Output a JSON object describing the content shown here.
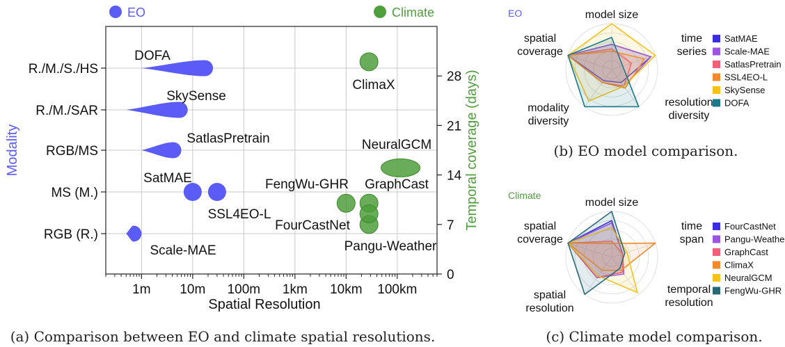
{
  "chart_data": [
    {
      "type": "scatter",
      "caption": "(a) Comparison between EO and climate spatial resolutions.",
      "xlabel": "Spatial Resolution",
      "ylabel_left": "Modality",
      "ylabel_right": "Temporal coverage (days)",
      "x_ticks": [
        "1m",
        "10m",
        "100m",
        "1km",
        "10km",
        "100km"
      ],
      "x_scale": "log",
      "xlim_m": [
        0.2,
        600000
      ],
      "y_categories": [
        "RGB (R.)",
        "MS (M.)",
        "RGB/MS",
        "R./M./SAR",
        "R./M./S./HS"
      ],
      "y_right_ticks": [
        0,
        7,
        14,
        21,
        28
      ],
      "y_right_lim": [
        0,
        35
      ],
      "grid": true,
      "legend": [
        {
          "name": "EO",
          "color": "#5b5bf5"
        },
        {
          "name": "Climate",
          "color": "#4f9e3c"
        }
      ],
      "eo_models": [
        {
          "name": "DOFA",
          "modality": "R./M./S./HS",
          "res_min_m": 1,
          "res_max_m": 25,
          "shape": "teardrop"
        },
        {
          "name": "SkySense",
          "modality": "R./M./SAR",
          "res_min_m": 0.5,
          "res_max_m": 8,
          "shape": "teardrop"
        },
        {
          "name": "SatlasPretrain",
          "modality": "RGB/MS",
          "res_min_m": 1,
          "res_max_m": 6,
          "shape": "teardrop"
        },
        {
          "name": "SatMAE",
          "modality": "MS (M.)",
          "res_m": 10,
          "shape": "circle"
        },
        {
          "name": "SSL4EO-L",
          "modality": "MS (M.)",
          "res_m": 30,
          "shape": "circle"
        },
        {
          "name": "Scale-MAE",
          "modality": "RGB (R.)",
          "res_min_m": 0.5,
          "res_max_m": 1,
          "shape": "teardrop"
        }
      ],
      "climate_models": [
        {
          "name": "ClimaX",
          "res_m": 28000,
          "days": 30
        },
        {
          "name": "NeuralGCM",
          "res_m": 140000,
          "days": 15
        },
        {
          "name": "FengWu-GHR",
          "res_m": 10000,
          "days": 10
        },
        {
          "name": "GraphCast",
          "res_m": 28000,
          "days": 10
        },
        {
          "name": "FourCastNet",
          "res_m": 28000,
          "days": 7
        },
        {
          "name": "Pangu-Weather",
          "res_m": 28000,
          "days": 8.5
        }
      ]
    },
    {
      "type": "radar",
      "caption": "(b) EO model comparison.",
      "corner_label": "EO",
      "axes": [
        "model size",
        "time series",
        "resolution diversity",
        "modality diversity",
        "spatial coverage"
      ],
      "series": [
        {
          "name": "SatMAE",
          "color": "#3b2ee0",
          "values": [
            0.55,
            0.9,
            0.35,
            0.3,
            1.0
          ]
        },
        {
          "name": "Scale-MAE",
          "color": "#9b55e0",
          "values": [
            0.55,
            0.9,
            0.45,
            0.35,
            1.0
          ]
        },
        {
          "name": "SatlasPretrain",
          "color": "#f0607a",
          "values": [
            0.45,
            0.45,
            0.45,
            0.35,
            1.0
          ]
        },
        {
          "name": "SSL4EO-L",
          "color": "#f08a2c",
          "values": [
            0.4,
            0.75,
            0.5,
            0.35,
            1.0
          ]
        },
        {
          "name": "SkySense",
          "color": "#f5c21c",
          "values": [
            1.0,
            1.0,
            0.45,
            0.85,
            1.0
          ]
        },
        {
          "name": "DOFA",
          "color": "#1a7a8c",
          "values": [
            0.7,
            0.25,
            1.0,
            1.0,
            1.0
          ]
        }
      ]
    },
    {
      "type": "radar",
      "caption": "(c) Climate model comparison.",
      "corner_label": "Climate",
      "axes": [
        "model size",
        "time span",
        "temporal resolution",
        "spatial resolution",
        "spatial coverage"
      ],
      "series": [
        {
          "name": "FourCastNet",
          "color": "#3b2ee0",
          "values": [
            0.8,
            0.25,
            0.4,
            0.55,
            1.0
          ]
        },
        {
          "name": "Pangu-Weather",
          "color": "#9b55e0",
          "values": [
            0.75,
            0.25,
            0.45,
            0.55,
            1.0
          ]
        },
        {
          "name": "GraphCast",
          "color": "#f0607a",
          "values": [
            0.35,
            0.25,
            0.4,
            0.55,
            1.0
          ]
        },
        {
          "name": "ClimaX",
          "color": "#f08a2c",
          "values": [
            0.3,
            1.0,
            0.35,
            0.35,
            1.0
          ]
        },
        {
          "name": "NeuralGCM",
          "color": "#f5c21c",
          "values": [
            0.65,
            0.35,
            0.95,
            0.5,
            1.0
          ]
        },
        {
          "name": "FengWu-GHR",
          "color": "#2a6a78",
          "values": [
            1.0,
            0.3,
            0.3,
            1.0,
            1.0
          ]
        }
      ]
    }
  ]
}
